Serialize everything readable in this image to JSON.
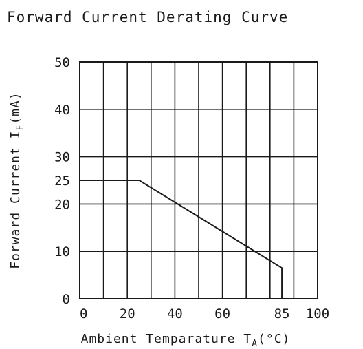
{
  "chart_data": {
    "type": "line",
    "title": "Forward Current Derating Curve",
    "xlabel": "Ambient Temparature T",
    "xlabel_sub": "A",
    "xlabel_unit": "(°C)",
    "ylabel": "Forward Current I",
    "ylabel_sub": "F",
    "ylabel_unit": "(mA)",
    "xlim": [
      0,
      100
    ],
    "ylim": [
      0,
      50
    ],
    "x_ticks": [
      0,
      20,
      40,
      60,
      85,
      100
    ],
    "y_ticks": [
      0,
      10,
      20,
      25,
      30,
      40,
      50
    ],
    "grid": true,
    "series": [
      {
        "x": [
          0,
          25,
          85,
          85
        ],
        "y": [
          25,
          25,
          6.5,
          0
        ]
      }
    ],
    "colors": {
      "line": "#1a1a1a",
      "grid": "#1a1a1a"
    }
  }
}
